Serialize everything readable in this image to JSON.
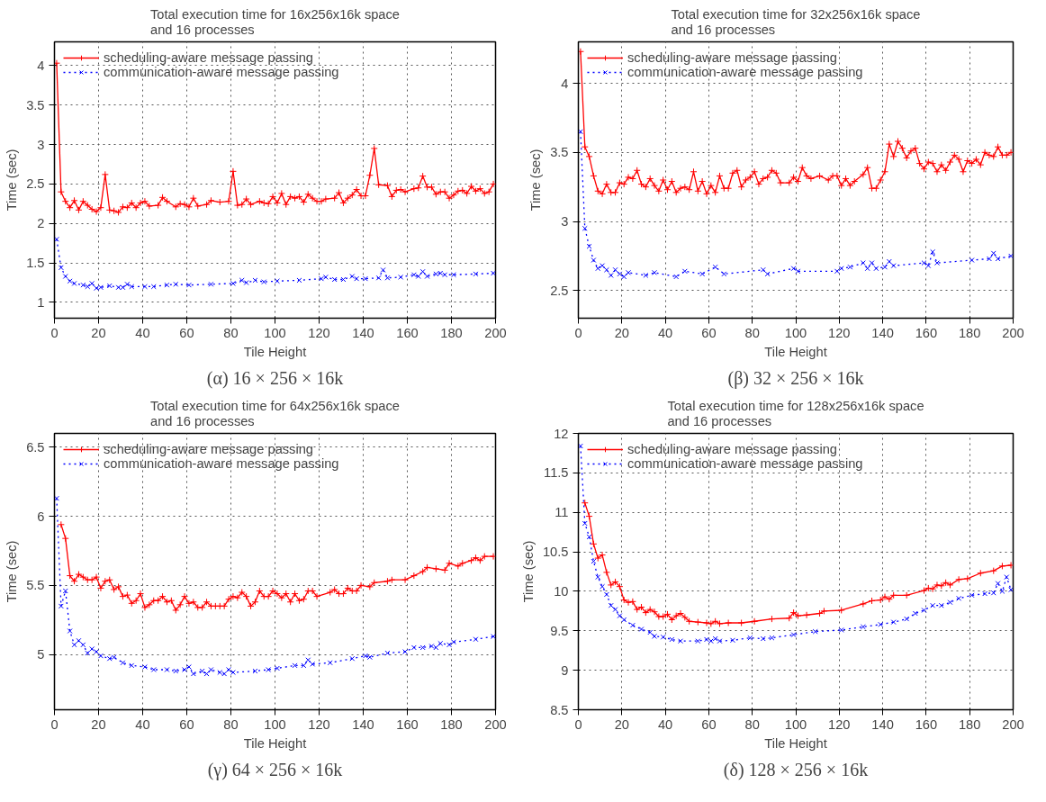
{
  "chart_data": [
    {
      "type": "line",
      "title": "Total execution time for 16x256x16k space\nand 16 processes",
      "xlabel": "Tile Height",
      "ylabel": "Time (sec)",
      "xlim": [
        0,
        200
      ],
      "ylim": [
        0.8,
        4.3
      ],
      "xticks": [
        0,
        20,
        40,
        60,
        80,
        100,
        120,
        140,
        160,
        180,
        200
      ],
      "yticks": [
        1,
        1.5,
        2,
        2.5,
        3,
        3.5,
        4
      ],
      "grid": true,
      "legend": "top left",
      "annotations": [
        "(α) 16 × 256 × 16k"
      ],
      "series": [
        {
          "name": "scheduling-aware message passing",
          "color": "#ff0000",
          "marker": "cross",
          "line_style": "solid",
          "x": [
            1,
            3,
            5,
            7,
            9,
            11,
            13,
            15,
            17,
            19,
            21,
            23,
            25,
            27,
            29,
            31,
            33,
            35,
            37,
            39,
            41,
            43,
            47,
            49,
            51,
            55,
            57,
            59,
            61,
            63,
            65,
            69,
            71,
            75,
            79,
            81,
            83,
            85,
            87,
            89,
            93,
            95,
            97,
            99,
            101,
            103,
            105,
            107,
            109,
            111,
            113,
            115,
            117,
            119,
            121,
            123,
            127,
            129,
            131,
            133,
            135,
            137,
            139,
            141,
            143,
            145,
            147,
            151,
            153,
            155,
            157,
            159,
            163,
            165,
            167,
            169,
            171,
            173,
            175,
            177,
            179,
            181,
            183,
            185,
            187,
            189,
            191,
            193,
            195,
            197,
            199
          ],
          "values": [
            4.03,
            2.4,
            2.28,
            2.2,
            2.29,
            2.17,
            2.28,
            2.23,
            2.18,
            2.15,
            2.2,
            2.62,
            2.17,
            2.16,
            2.14,
            2.21,
            2.2,
            2.26,
            2.2,
            2.26,
            2.28,
            2.22,
            2.23,
            2.33,
            2.28,
            2.21,
            2.25,
            2.24,
            2.21,
            2.32,
            2.22,
            2.24,
            2.29,
            2.27,
            2.28,
            2.66,
            2.23,
            2.24,
            2.31,
            2.24,
            2.28,
            2.26,
            2.25,
            2.34,
            2.26,
            2.38,
            2.24,
            2.34,
            2.32,
            2.34,
            2.27,
            2.37,
            2.32,
            2.28,
            2.28,
            2.31,
            2.32,
            2.39,
            2.26,
            2.32,
            2.36,
            2.43,
            2.35,
            2.35,
            2.61,
            2.95,
            2.49,
            2.48,
            2.34,
            2.42,
            2.43,
            2.4,
            2.44,
            2.45,
            2.6,
            2.46,
            2.46,
            2.37,
            2.4,
            2.4,
            2.32,
            2.36,
            2.41,
            2.42,
            2.38,
            2.47,
            2.41,
            2.44,
            2.38,
            2.4,
            2.5
          ]
        },
        {
          "name": "communication-aware message passing",
          "color": "#0000ff",
          "marker": "x",
          "line_style": "dotted",
          "x": [
            1,
            3,
            5,
            7,
            9,
            13,
            15,
            17,
            19,
            21,
            25,
            29,
            31,
            33,
            35,
            41,
            45,
            51,
            55,
            61,
            71,
            81,
            85,
            87,
            91,
            95,
            101,
            111,
            121,
            123,
            127,
            131,
            135,
            137,
            141,
            147,
            149,
            151,
            157,
            163,
            165,
            167,
            169,
            173,
            175,
            177,
            181,
            191,
            199
          ],
          "values": [
            1.8,
            1.44,
            1.33,
            1.27,
            1.24,
            1.22,
            1.2,
            1.24,
            1.18,
            1.19,
            1.21,
            1.19,
            1.19,
            1.23,
            1.2,
            1.2,
            1.2,
            1.22,
            1.23,
            1.22,
            1.23,
            1.24,
            1.28,
            1.25,
            1.28,
            1.26,
            1.27,
            1.28,
            1.3,
            1.32,
            1.29,
            1.29,
            1.33,
            1.3,
            1.3,
            1.31,
            1.41,
            1.31,
            1.32,
            1.35,
            1.33,
            1.39,
            1.33,
            1.36,
            1.37,
            1.35,
            1.35,
            1.36,
            1.37
          ]
        }
      ]
    },
    {
      "type": "line",
      "title": "Total execution time for 32x256x16k space\nand 16 processes",
      "xlabel": "Tile Height",
      "ylabel": "Time (sec)",
      "xlim": [
        0,
        200
      ],
      "ylim": [
        2.3,
        4.3
      ],
      "xticks": [
        0,
        20,
        40,
        60,
        80,
        100,
        120,
        140,
        160,
        180,
        200
      ],
      "yticks": [
        2.5,
        3,
        3.5,
        4
      ],
      "grid": true,
      "legend": "top left",
      "annotations": [
        "(β) 32 × 256 × 16k"
      ],
      "series": [
        {
          "name": "scheduling-aware message passing",
          "color": "#ff0000",
          "marker": "cross",
          "line_style": "solid",
          "x": [
            1,
            3,
            5,
            7,
            9,
            11,
            13,
            15,
            17,
            19,
            21,
            23,
            25,
            27,
            29,
            31,
            33,
            35,
            37,
            39,
            41,
            43,
            45,
            47,
            49,
            51,
            53,
            55,
            57,
            59,
            61,
            63,
            65,
            67,
            69,
            71,
            73,
            75,
            77,
            79,
            81,
            83,
            85,
            87,
            89,
            91,
            93,
            97,
            99,
            101,
            103,
            105,
            107,
            111,
            115,
            117,
            119,
            121,
            123,
            125,
            127,
            131,
            133,
            135,
            137,
            139,
            141,
            143,
            145,
            147,
            149,
            151,
            153,
            155,
            157,
            159,
            161,
            163,
            165,
            167,
            169,
            171,
            173,
            175,
            177,
            179,
            181,
            183,
            185,
            187,
            189,
            191,
            193,
            195,
            197,
            199
          ],
          "values": [
            4.23,
            3.54,
            3.47,
            3.33,
            3.22,
            3.2,
            3.27,
            3.21,
            3.21,
            3.28,
            3.27,
            3.32,
            3.31,
            3.37,
            3.27,
            3.25,
            3.31,
            3.26,
            3.22,
            3.3,
            3.23,
            3.29,
            3.21,
            3.24,
            3.25,
            3.23,
            3.36,
            3.22,
            3.29,
            3.2,
            3.26,
            3.21,
            3.33,
            3.24,
            3.24,
            3.35,
            3.37,
            3.25,
            3.3,
            3.32,
            3.36,
            3.27,
            3.31,
            3.32,
            3.37,
            3.35,
            3.28,
            3.28,
            3.32,
            3.29,
            3.39,
            3.33,
            3.31,
            3.33,
            3.3,
            3.33,
            3.33,
            3.26,
            3.31,
            3.26,
            3.29,
            3.34,
            3.39,
            3.24,
            3.24,
            3.3,
            3.36,
            3.56,
            3.47,
            3.58,
            3.53,
            3.46,
            3.51,
            3.53,
            3.42,
            3.38,
            3.43,
            3.42,
            3.36,
            3.41,
            3.37,
            3.43,
            3.48,
            3.45,
            3.36,
            3.44,
            3.42,
            3.45,
            3.41,
            3.5,
            3.48,
            3.47,
            3.54,
            3.48,
            3.48,
            3.5
          ]
        },
        {
          "name": "communication-aware message passing",
          "color": "#0000ff",
          "marker": "x",
          "line_style": "dotted",
          "x": [
            1,
            3,
            5,
            7,
            9,
            11,
            13,
            15,
            17,
            19,
            21,
            23,
            31,
            35,
            45,
            49,
            57,
            63,
            67,
            85,
            87,
            99,
            101,
            119,
            121,
            125,
            131,
            133,
            135,
            137,
            141,
            143,
            145,
            159,
            161,
            163,
            165,
            181,
            189,
            191,
            193,
            199
          ],
          "values": [
            3.65,
            2.95,
            2.82,
            2.72,
            2.66,
            2.68,
            2.65,
            2.61,
            2.65,
            2.62,
            2.6,
            2.63,
            2.61,
            2.63,
            2.6,
            2.64,
            2.62,
            2.67,
            2.62,
            2.65,
            2.62,
            2.66,
            2.64,
            2.64,
            2.66,
            2.67,
            2.7,
            2.66,
            2.7,
            2.66,
            2.67,
            2.71,
            2.68,
            2.7,
            2.68,
            2.78,
            2.7,
            2.72,
            2.73,
            2.77,
            2.73,
            2.75
          ]
        }
      ]
    },
    {
      "type": "line",
      "title": "Total execution time for 64x256x16k space\nand 16 processes",
      "xlabel": "Tile Height",
      "ylabel": "Time (sec)",
      "xlim": [
        0,
        200
      ],
      "ylim": [
        4.6,
        6.6
      ],
      "xticks": [
        0,
        20,
        40,
        60,
        80,
        100,
        120,
        140,
        160,
        180,
        200
      ],
      "yticks": [
        5,
        5.5,
        6,
        6.5
      ],
      "grid": true,
      "legend": "top left",
      "annotations": [
        "(γ) 64 × 256 × 16k"
      ],
      "series": [
        {
          "name": "scheduling-aware message passing",
          "color": "#ff0000",
          "marker": "cross",
          "line_style": "solid",
          "x": [
            3,
            5,
            7,
            9,
            11,
            13,
            15,
            17,
            19,
            21,
            23,
            25,
            27,
            29,
            31,
            33,
            35,
            37,
            39,
            41,
            43,
            45,
            47,
            49,
            51,
            53,
            55,
            57,
            59,
            61,
            63,
            65,
            67,
            69,
            71,
            73,
            75,
            77,
            79,
            81,
            83,
            85,
            87,
            89,
            91,
            93,
            95,
            97,
            99,
            101,
            103,
            105,
            107,
            109,
            111,
            113,
            115,
            117,
            119,
            125,
            127,
            129,
            131,
            133,
            135,
            137,
            139,
            143,
            145,
            151,
            153,
            159,
            163,
            167,
            169,
            173,
            177,
            179,
            183,
            185,
            189,
            191,
            193,
            195,
            199
          ],
          "values": [
            5.94,
            5.84,
            5.57,
            5.53,
            5.58,
            5.56,
            5.54,
            5.54,
            5.56,
            5.48,
            5.53,
            5.54,
            5.47,
            5.49,
            5.42,
            5.43,
            5.37,
            5.39,
            5.44,
            5.34,
            5.36,
            5.39,
            5.39,
            5.42,
            5.38,
            5.39,
            5.32,
            5.36,
            5.42,
            5.37,
            5.38,
            5.34,
            5.34,
            5.38,
            5.35,
            5.35,
            5.35,
            5.35,
            5.4,
            5.42,
            5.41,
            5.45,
            5.42,
            5.35,
            5.38,
            5.46,
            5.42,
            5.42,
            5.46,
            5.44,
            5.41,
            5.44,
            5.38,
            5.44,
            5.39,
            5.4,
            5.46,
            5.46,
            5.42,
            5.45,
            5.47,
            5.44,
            5.44,
            5.48,
            5.46,
            5.46,
            5.5,
            5.49,
            5.52,
            5.53,
            5.54,
            5.54,
            5.57,
            5.6,
            5.63,
            5.62,
            5.61,
            5.66,
            5.64,
            5.66,
            5.68,
            5.7,
            5.68,
            5.71,
            5.71
          ]
        },
        {
          "name": "communication-aware message passing",
          "color": "#0000ff",
          "marker": "x",
          "line_style": "dotted",
          "x": [
            1,
            3,
            5,
            7,
            9,
            11,
            13,
            15,
            17,
            19,
            21,
            25,
            27,
            31,
            35,
            41,
            45,
            51,
            55,
            59,
            61,
            63,
            67,
            69,
            71,
            75,
            77,
            79,
            81,
            91,
            97,
            101,
            109,
            113,
            115,
            117,
            125,
            135,
            141,
            143,
            151,
            159,
            163,
            167,
            171,
            173,
            175,
            179,
            181,
            191,
            199
          ],
          "values": [
            6.13,
            5.35,
            5.46,
            5.17,
            5.07,
            5.1,
            5.07,
            5.01,
            5.04,
            5.02,
            4.99,
            4.97,
            4.98,
            4.94,
            4.92,
            4.91,
            4.89,
            4.89,
            4.88,
            4.89,
            4.91,
            4.86,
            4.88,
            4.86,
            4.89,
            4.87,
            4.86,
            4.89,
            4.87,
            4.88,
            4.89,
            4.9,
            4.92,
            4.92,
            4.96,
            4.93,
            4.94,
            4.97,
            4.99,
            4.98,
            5.01,
            5.02,
            5.05,
            5.05,
            5.06,
            5.05,
            5.08,
            5.07,
            5.09,
            5.11,
            5.13
          ]
        }
      ]
    },
    {
      "type": "line",
      "title": "Total execution time for 128x256x16k space\nand 16 processes",
      "xlabel": "Tile Height",
      "ylabel": "Time (sec)",
      "xlim": [
        0,
        200
      ],
      "ylim": [
        8.5,
        12
      ],
      "xticks": [
        0,
        20,
        40,
        60,
        80,
        100,
        120,
        140,
        160,
        180,
        200
      ],
      "yticks": [
        8.5,
        9,
        9.5,
        10,
        10.5,
        11,
        11.5,
        12
      ],
      "grid": true,
      "legend": "top left",
      "annotations": [
        "(δ) 128 × 256 × 16k"
      ],
      "series": [
        {
          "name": "scheduling-aware message passing",
          "color": "#ff0000",
          "marker": "cross",
          "line_style": "solid",
          "x": [
            3,
            5,
            7,
            9,
            11,
            13,
            15,
            17,
            19,
            21,
            23,
            25,
            27,
            29,
            31,
            33,
            35,
            37,
            39,
            41,
            43,
            45,
            47,
            49,
            51,
            55,
            59,
            61,
            63,
            65,
            69,
            75,
            81,
            89,
            97,
            99,
            101,
            105,
            111,
            113,
            121,
            131,
            135,
            139,
            141,
            143,
            145,
            151,
            159,
            161,
            163,
            165,
            167,
            169,
            171,
            175,
            179,
            185,
            191,
            195,
            199
          ],
          "values": [
            11.12,
            10.95,
            10.6,
            10.42,
            10.46,
            10.24,
            10.08,
            10.12,
            10.06,
            9.89,
            9.86,
            9.87,
            9.77,
            9.8,
            9.73,
            9.77,
            9.74,
            9.68,
            9.68,
            9.71,
            9.64,
            9.69,
            9.72,
            9.67,
            9.62,
            9.61,
            9.6,
            9.59,
            9.62,
            9.59,
            9.6,
            9.6,
            9.62,
            9.65,
            9.66,
            9.73,
            9.69,
            9.7,
            9.72,
            9.75,
            9.76,
            9.84,
            9.88,
            9.89,
            9.93,
            9.9,
            9.95,
            9.95,
            10.01,
            10.04,
            10.03,
            10.08,
            10.07,
            10.11,
            10.08,
            10.15,
            10.16,
            10.23,
            10.26,
            10.32,
            10.33
          ]
        },
        {
          "name": "communication-aware message passing",
          "color": "#0000ff",
          "marker": "x",
          "line_style": "dotted",
          "x": [
            1,
            3,
            5,
            7,
            9,
            11,
            13,
            15,
            17,
            19,
            21,
            25,
            29,
            33,
            35,
            39,
            43,
            47,
            55,
            59,
            61,
            63,
            65,
            71,
            79,
            85,
            89,
            99,
            109,
            121,
            131,
            139,
            145,
            151,
            155,
            159,
            163,
            167,
            171,
            175,
            181,
            187,
            191,
            193,
            195,
            197,
            199
          ],
          "values": [
            11.84,
            10.86,
            10.69,
            10.38,
            10.18,
            10.06,
            9.96,
            9.82,
            9.77,
            9.69,
            9.64,
            9.57,
            9.52,
            9.48,
            9.43,
            9.42,
            9.39,
            9.37,
            9.37,
            9.39,
            9.37,
            9.4,
            9.37,
            9.38,
            9.41,
            9.4,
            9.41,
            9.45,
            9.49,
            9.51,
            9.55,
            9.58,
            9.61,
            9.65,
            9.72,
            9.76,
            9.82,
            9.82,
            9.86,
            9.91,
            9.95,
            9.97,
            9.98,
            10.1,
            10.0,
            10.18,
            10.02
          ]
        }
      ]
    }
  ]
}
